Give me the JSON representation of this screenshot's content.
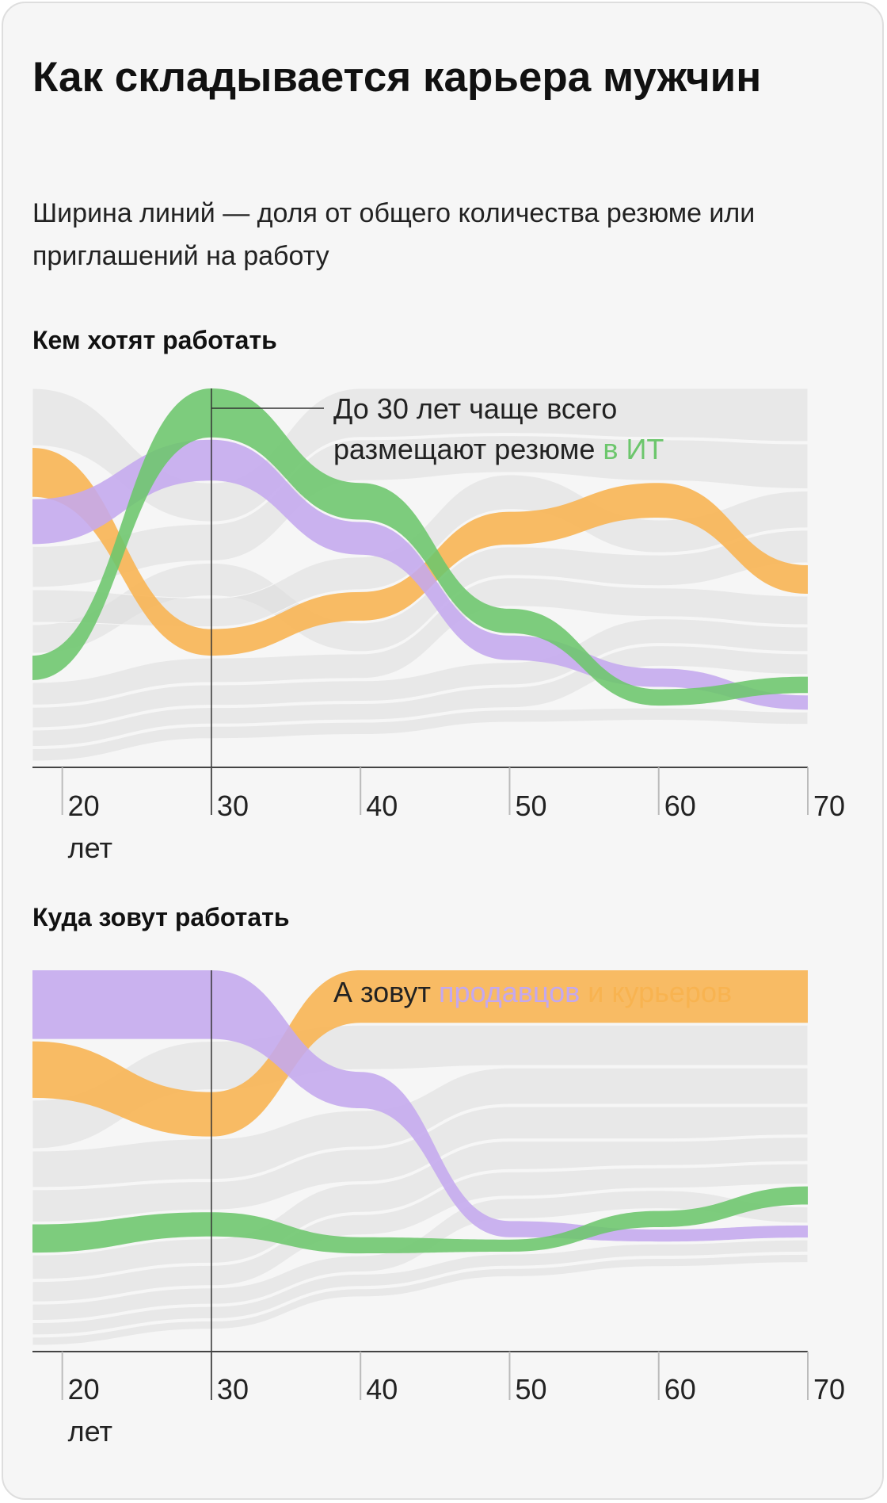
{
  "title": "Как складывается карьера мужчин",
  "subtitle": "Ширина линий — доля от общего количества резюме или приглашений на работу",
  "chart_data": [
    {
      "type": "stream",
      "title": "Кем хотят работать",
      "x": [
        18,
        30,
        40,
        50,
        60,
        70
      ],
      "xlim": [
        18,
        70
      ],
      "xticks": [
        {
          "value": 20,
          "label": "20 лет"
        },
        30,
        40,
        50,
        60,
        70
      ],
      "marker_x": 30,
      "annotation": [
        {
          "text": "До 30 лет чаще всего размещают резюме"
        },
        {
          "text": "в ИТ",
          "color": "#6cc66c"
        }
      ],
      "series": [
        {
          "color": "#6cc66c",
          "values": [
            6,
            12,
            9,
            6,
            4,
            4
          ]
        },
        {
          "color": "#c4a8ee",
          "values": [
            11,
            10,
            8,
            6,
            4.5,
            3.5
          ]
        },
        {
          "color": "#f8b350",
          "values": [
            12,
            6.5,
            7,
            8,
            8.5,
            7
          ]
        },
        {
          "color": "#dcdcdc",
          "values": [
            14,
            9.5,
            12,
            11,
            12,
            13
          ]
        },
        {
          "color": "#dcdcdc",
          "values": [
            10,
            9,
            10,
            9,
            10,
            11
          ]
        },
        {
          "color": "#dcdcdc",
          "values": [
            8,
            7,
            8,
            8.5,
            8,
            9
          ]
        },
        {
          "color": "#dcdcdc",
          "values": [
            7,
            8,
            7,
            7,
            7.5,
            8
          ]
        },
        {
          "color": "#dcdcdc",
          "values": [
            5.5,
            6,
            6,
            7,
            7,
            7
          ]
        },
        {
          "color": "#dcdcdc",
          "values": [
            5,
            5,
            5,
            5.5,
            6,
            6
          ]
        },
        {
          "color": "#dcdcdc",
          "values": [
            4,
            4,
            4,
            5,
            5,
            5
          ]
        },
        {
          "color": "#dcdcdc",
          "values": [
            3,
            3,
            3,
            3,
            3,
            3
          ]
        }
      ]
    },
    {
      "type": "stream",
      "title": "Куда зовут работать",
      "x": [
        18,
        30,
        40,
        50,
        60,
        70
      ],
      "xlim": [
        18,
        70
      ],
      "xticks": [
        {
          "value": 20,
          "label": "20 лет"
        },
        30,
        40,
        50,
        60,
        70
      ],
      "marker_x": 30,
      "annotation": [
        {
          "text": "А зовут"
        },
        {
          "text": "продавцов",
          "color": "#c4a8ee"
        },
        {
          "text": "и курьеров",
          "color": "#f8b350"
        }
      ],
      "series": [
        {
          "color": "#6cc66c",
          "values": [
            7,
            6,
            4,
            3,
            4,
            4.5
          ]
        },
        {
          "color": "#c4a8ee",
          "values": [
            17,
            17,
            9,
            4,
            3,
            3
          ]
        },
        {
          "color": "#f8b350",
          "values": [
            14,
            11,
            13,
            13,
            13,
            13
          ]
        },
        {
          "color": "#dcdcdc",
          "values": [
            12,
            12,
            11,
            10,
            10,
            10
          ]
        },
        {
          "color": "#dcdcdc",
          "values": [
            9,
            10,
            9,
            9,
            9,
            9
          ]
        },
        {
          "color": "#dcdcdc",
          "values": [
            8,
            7,
            8,
            8,
            8,
            7
          ]
        },
        {
          "color": "#dcdcdc",
          "values": [
            6,
            6,
            7,
            7,
            6,
            6
          ]
        },
        {
          "color": "#dcdcdc",
          "values": [
            5,
            5,
            5,
            6,
            5,
            5
          ]
        },
        {
          "color": "#dcdcdc",
          "values": [
            4,
            4,
            4,
            5,
            4.5,
            4
          ]
        },
        {
          "color": "#dcdcdc",
          "values": [
            3,
            3,
            3,
            3,
            3,
            3
          ]
        },
        {
          "color": "#dcdcdc",
          "values": [
            2,
            2,
            2,
            2,
            2,
            2
          ]
        }
      ]
    }
  ]
}
